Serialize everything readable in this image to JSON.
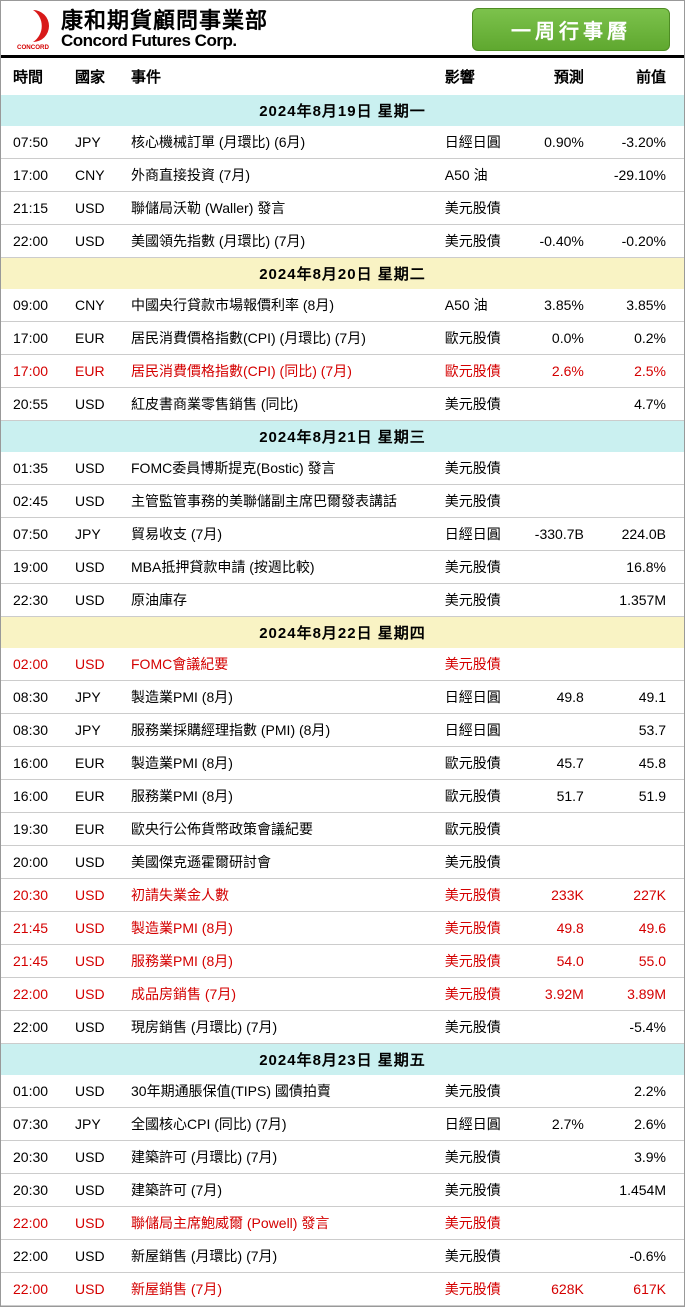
{
  "brand": {
    "cn": "康和期貨顧問事業部",
    "en": "Concord Futures Corp."
  },
  "title_button": "一周行事曆",
  "logo": {
    "fill": "#d40000",
    "text": "CONCORD"
  },
  "columns": {
    "time": "時間",
    "country": "國家",
    "event": "事件",
    "impact": "影響",
    "forecast": "預測",
    "previous": "前值"
  },
  "colors": {
    "day_bg": [
      "#caf0f0",
      "#f9f3c4",
      "#caf0f0",
      "#f9f3c4",
      "#caf0f0"
    ],
    "border": "#cccccc",
    "header_rule": "#000000",
    "hot": "#d40000",
    "button_top": "#7cc24c",
    "button_bottom": "#5fa82f"
  },
  "days": [
    {
      "label": "2024年8月19日  星期一",
      "rows": [
        {
          "time": "07:50",
          "country": "JPY",
          "event": "核心機械訂單 (月環比) (6月)",
          "impact": "日經日圓",
          "forecast": "0.90%",
          "previous": "-3.20%",
          "hot": false
        },
        {
          "time": "17:00",
          "country": "CNY",
          "event": "外商直接投資 (7月)",
          "impact": "A50 油",
          "forecast": "",
          "previous": "-29.10%",
          "hot": false
        },
        {
          "time": "21:15",
          "country": "USD",
          "event": "聯儲局沃勒 (Waller) 發言",
          "impact": "美元股債",
          "forecast": "",
          "previous": "",
          "hot": false
        },
        {
          "time": "22:00",
          "country": "USD",
          "event": "美國領先指數 (月環比) (7月)",
          "impact": "美元股債",
          "forecast": "-0.40%",
          "previous": "-0.20%",
          "hot": false
        }
      ]
    },
    {
      "label": "2024年8月20日  星期二",
      "rows": [
        {
          "time": "09:00",
          "country": "CNY",
          "event": "中國央行貸款市場報價利率 (8月)",
          "impact": "A50 油",
          "forecast": "3.85%",
          "previous": "3.85%",
          "hot": false
        },
        {
          "time": "17:00",
          "country": "EUR",
          "event": "居民消費價格指數(CPI) (月環比) (7月)",
          "impact": "歐元股債",
          "forecast": "0.0%",
          "previous": "0.2%",
          "hot": false
        },
        {
          "time": "17:00",
          "country": "EUR",
          "event": "居民消費價格指數(CPI) (同比) (7月)",
          "impact": "歐元股債",
          "forecast": "2.6%",
          "previous": "2.5%",
          "hot": true
        },
        {
          "time": "20:55",
          "country": "USD",
          "event": "紅皮書商業零售銷售 (同比)",
          "impact": "美元股債",
          "forecast": "",
          "previous": "4.7%",
          "hot": false
        }
      ]
    },
    {
      "label": "2024年8月21日  星期三",
      "rows": [
        {
          "time": "01:35",
          "country": "USD",
          "event": "FOMC委員博斯提克(Bostic) 發言",
          "impact": "美元股債",
          "forecast": "",
          "previous": "",
          "hot": false
        },
        {
          "time": "02:45",
          "country": "USD",
          "event": "主管監管事務的美聯儲副主席巴爾發表講話",
          "impact": "美元股債",
          "forecast": "",
          "previous": "",
          "hot": false
        },
        {
          "time": "07:50",
          "country": "JPY",
          "event": "貿易收支 (7月)",
          "impact": "日經日圓",
          "forecast": "-330.7B",
          "previous": "224.0B",
          "hot": false
        },
        {
          "time": "19:00",
          "country": "USD",
          "event": "MBA抵押貸款申請 (按週比較)",
          "impact": "美元股債",
          "forecast": "",
          "previous": "16.8%",
          "hot": false
        },
        {
          "time": "22:30",
          "country": "USD",
          "event": "原油庫存",
          "impact": "美元股債",
          "forecast": "",
          "previous": "1.357M",
          "hot": false
        }
      ]
    },
    {
      "label": "2024年8月22日  星期四",
      "rows": [
        {
          "time": "02:00",
          "country": "USD",
          "event": "FOMC會議紀要",
          "impact": "美元股債",
          "forecast": "",
          "previous": "",
          "hot": true
        },
        {
          "time": "08:30",
          "country": "JPY",
          "event": "製造業PMI (8月)",
          "impact": "日經日圓",
          "forecast": "49.8",
          "previous": "49.1",
          "hot": false
        },
        {
          "time": "08:30",
          "country": "JPY",
          "event": "服務業採購經理指數 (PMI) (8月)",
          "impact": "日經日圓",
          "forecast": "",
          "previous": "53.7",
          "hot": false
        },
        {
          "time": "16:00",
          "country": "EUR",
          "event": "製造業PMI (8月)",
          "impact": "歐元股債",
          "forecast": "45.7",
          "previous": "45.8",
          "hot": false
        },
        {
          "time": "16:00",
          "country": "EUR",
          "event": "服務業PMI (8月)",
          "impact": "歐元股債",
          "forecast": "51.7",
          "previous": "51.9",
          "hot": false
        },
        {
          "time": "19:30",
          "country": "EUR",
          "event": "歐央行公佈貨幣政策會議紀要",
          "impact": "歐元股債",
          "forecast": "",
          "previous": "",
          "hot": false
        },
        {
          "time": "20:00",
          "country": "USD",
          "event": "美國傑克遜霍爾研討會",
          "impact": "美元股債",
          "forecast": "",
          "previous": "",
          "hot": false
        },
        {
          "time": "20:30",
          "country": "USD",
          "event": "初請失業金人數",
          "impact": "美元股債",
          "forecast": "233K",
          "previous": "227K",
          "hot": true
        },
        {
          "time": "21:45",
          "country": "USD",
          "event": "製造業PMI (8月)",
          "impact": "美元股債",
          "forecast": "49.8",
          "previous": "49.6",
          "hot": true
        },
        {
          "time": "21:45",
          "country": "USD",
          "event": "服務業PMI (8月)",
          "impact": "美元股債",
          "forecast": "54.0",
          "previous": "55.0",
          "hot": true
        },
        {
          "time": "22:00",
          "country": "USD",
          "event": "成品房銷售 (7月)",
          "impact": "美元股債",
          "forecast": "3.92M",
          "previous": "3.89M",
          "hot": true
        },
        {
          "time": "22:00",
          "country": "USD",
          "event": "現房銷售 (月環比) (7月)",
          "impact": "美元股債",
          "forecast": "",
          "previous": "-5.4%",
          "hot": false
        }
      ]
    },
    {
      "label": "2024年8月23日  星期五",
      "rows": [
        {
          "time": "01:00",
          "country": "USD",
          "event": "30年期通脹保值(TIPS) 國債拍賣",
          "impact": "美元股債",
          "forecast": "",
          "previous": "2.2%",
          "hot": false
        },
        {
          "time": "07:30",
          "country": "JPY",
          "event": "全國核心CPI (同比) (7月)",
          "impact": "日經日圓",
          "forecast": "2.7%",
          "previous": "2.6%",
          "hot": false
        },
        {
          "time": "20:30",
          "country": "USD",
          "event": "建築許可 (月環比) (7月)",
          "impact": "美元股債",
          "forecast": "",
          "previous": "3.9%",
          "hot": false
        },
        {
          "time": "20:30",
          "country": "USD",
          "event": "建築許可 (7月)",
          "impact": "美元股債",
          "forecast": "",
          "previous": "1.454M",
          "hot": false
        },
        {
          "time": "22:00",
          "country": "USD",
          "event": "聯儲局主席鮑威爾 (Powell) 發言",
          "impact": "美元股債",
          "forecast": "",
          "previous": "",
          "hot": true
        },
        {
          "time": "22:00",
          "country": "USD",
          "event": "新屋銷售 (月環比) (7月)",
          "impact": "美元股債",
          "forecast": "",
          "previous": "-0.6%",
          "hot": false
        },
        {
          "time": "22:00",
          "country": "USD",
          "event": "新屋銷售 (7月)",
          "impact": "美元股債",
          "forecast": "628K",
          "previous": "617K",
          "hot": true
        }
      ]
    }
  ]
}
